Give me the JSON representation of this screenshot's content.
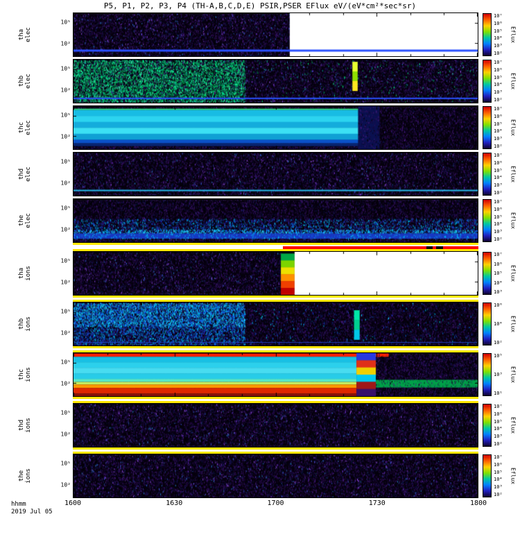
{
  "chart_data": {
    "type": "heatmap",
    "title": "P5, P1, P2, P3, P4 (TH-A,B,C,D,E) PSIR,PSER EFlux eV/(eV*cm²*sec*sr)",
    "colorbar_label": "Eflux",
    "colorbar_gradient": [
      "#d00000",
      "#ff6000",
      "#ffd000",
      "#80e000",
      "#00c8a0",
      "#0080ff",
      "#2020c0",
      "#100030"
    ],
    "x_axis": {
      "label": "hhmm",
      "date": "2019 Jul 05",
      "range_hhmm": [
        "1600",
        "1800"
      ],
      "ticks": [
        {
          "v": "1600",
          "f": 0
        },
        {
          "v": "1630",
          "f": 0.25
        },
        {
          "v": "1700",
          "f": 0.5
        },
        {
          "v": "1730",
          "f": 0.75
        },
        {
          "v": "1800",
          "f": 1
        }
      ]
    },
    "palettes": {
      "purple": [
        "#1c0838",
        "#2e0d55",
        "#3c1470",
        "#14073a",
        "#0d1a55",
        "#4a1c85",
        "#000000",
        "#24104a"
      ],
      "spark": [
        "#7a3ae0",
        "#3a60e0",
        "#9a55f0",
        "#2a80d0"
      ],
      "green": [
        "#00d060",
        "#00b050",
        "#00ff88",
        "#00a878",
        "#007840",
        "#00e8a0",
        "#003318"
      ],
      "blue": [
        "#1a3ae0",
        "#0a6ae8",
        "#00b4f0",
        "#2028a8",
        "#00e0ff",
        "#0848c0"
      ],
      "bluehi": [
        "#00c8ff",
        "#30e0ff",
        "#1060ff"
      ]
    },
    "panels": [
      {
        "id": "tha-elec",
        "sc": "tha",
        "sp": "elec",
        "yticks": [
          {
            "v": "10⁵",
            "f": 0.22
          },
          {
            "v": "10²",
            "f": 0.7
          }
        ],
        "cb": [
          "10⁷",
          "10⁶",
          "10⁵",
          "10⁴",
          "10³",
          "10²"
        ],
        "regions": [
          {
            "t": "n",
            "x1": 0.535,
            "d": 0.32,
            "p": "purple"
          },
          {
            "t": "n",
            "x1": 0.535,
            "d": 0.025,
            "p": "spark"
          },
          {
            "t": "s",
            "x0": 0.535,
            "c": "#ffffff"
          },
          {
            "t": "h",
            "y": 0.87,
            "th": 3,
            "c": "#2a50ff"
          }
        ]
      },
      {
        "id": "thb-elec",
        "sc": "thb",
        "sp": "elec",
        "yticks": [
          {
            "v": "10⁵",
            "f": 0.22
          },
          {
            "v": "10²",
            "f": 0.7
          }
        ],
        "cb": [
          "10⁷",
          "10⁶",
          "10⁵",
          "10⁴",
          "10³",
          "10²"
        ],
        "regions": [
          {
            "t": "n",
            "d": 0.32,
            "p": "purple"
          },
          {
            "t": "n",
            "d": 0.02,
            "p": "spark"
          },
          {
            "t": "n",
            "x1": 0.424,
            "d": 0.42,
            "p": "green"
          },
          {
            "t": "n",
            "x1": 0.424,
            "d": 0.1,
            "cs": [
              "#00ff99",
              "#40ffb0"
            ]
          },
          {
            "t": "n",
            "x0": 0.424,
            "d": 0.015,
            "p": "green"
          },
          {
            "t": "b",
            "x0": 0.69,
            "x1": 0.703,
            "y0": 0.05,
            "y1": 0.72,
            "cs": [
              "#e8ff30",
              "#90e000",
              "#ffe820"
            ]
          },
          {
            "t": "h",
            "y": 0.9,
            "th": 2,
            "c": "#2a50ff"
          }
        ]
      },
      {
        "id": "thc-elec",
        "sc": "thc",
        "sp": "elec",
        "yticks": [
          {
            "v": "10⁵",
            "f": 0.22
          },
          {
            "v": "10²",
            "f": 0.7
          }
        ],
        "cb": [
          "10⁷",
          "10⁶",
          "10⁵",
          "10⁴",
          "10³",
          "10²"
        ],
        "regions": [
          {
            "t": "n",
            "d": 0.32,
            "p": "purple"
          },
          {
            "t": "s",
            "x0": 0.704,
            "x1": 0.757,
            "c": "#0a1050"
          },
          {
            "t": "n",
            "x0": 0.704,
            "x1": 0.757,
            "d": 0.18,
            "p": "purple"
          },
          {
            "t": "h",
            "x1": 0.704,
            "y": 0.075,
            "th": 2,
            "c": "#38e888"
          },
          {
            "t": "b",
            "x1": 0.704,
            "y0": 0.09,
            "y1": 0.78,
            "cs": [
              "#18bce4",
              "#2cd4f0",
              "#14acdc",
              "#3ce0f4",
              "#10a0d4"
            ]
          },
          {
            "t": "s",
            "x1": 0.704,
            "y0": 0.78,
            "y1": 0.865,
            "c": "#0a50c8"
          },
          {
            "t": "s",
            "x1": 0.704,
            "y0": 0.865,
            "y1": 0.93,
            "c": "#082470"
          },
          {
            "t": "n",
            "x1": 0.704,
            "y0": 0.93,
            "d": 0.3,
            "p": "purple"
          }
        ]
      },
      {
        "id": "thd-elec",
        "sc": "thd",
        "sp": "elec",
        "yticks": [
          {
            "v": "10⁵",
            "f": 0.22
          },
          {
            "v": "10²",
            "f": 0.7
          }
        ],
        "cb": [
          "10⁷",
          "10⁶",
          "10⁵",
          "10⁴",
          "10³",
          "10²"
        ],
        "regions": [
          {
            "t": "n",
            "d": 0.32,
            "p": "purple"
          },
          {
            "t": "n",
            "d": 0.02,
            "p": "spark"
          },
          {
            "t": "h",
            "y": 0.88,
            "th": 2,
            "c": "#28b8e8"
          }
        ]
      },
      {
        "id": "the-elec",
        "sc": "the",
        "sp": "elec",
        "yticks": [
          {
            "v": "10⁵",
            "f": 0.22
          },
          {
            "v": "10²",
            "f": 0.7
          }
        ],
        "cb": [
          "10⁷",
          "10⁶",
          "10⁵",
          "10⁴",
          "10³",
          "10²"
        ],
        "regions": [
          {
            "t": "n",
            "d": 0.32,
            "p": "purple"
          },
          {
            "t": "n",
            "y0": 0.45,
            "y1": 0.85,
            "d": 0.22,
            "p": "blue"
          },
          {
            "t": "n",
            "y0": 0.7,
            "y1": 0.85,
            "d": 0.4,
            "p": "bluehi"
          },
          {
            "t": "s",
            "y0": 0.8,
            "y1": 0.92,
            "c": "#1838c0"
          },
          {
            "t": "n",
            "y0": 0.8,
            "y1": 0.92,
            "d": 0.25,
            "p": "blue"
          },
          {
            "t": "n",
            "y0": 0.92,
            "d": 0.3,
            "p": "purple"
          }
        ],
        "sep": [
          {
            "h": 3,
            "c": "#ffe800"
          },
          {
            "h": 2,
            "c": "#ffffff"
          },
          {
            "h": 4,
            "c": "#ff0000",
            "x0": 0.518,
            "blk": [
              [
                0.872,
                0.888
              ],
              [
                0.895,
                0.912
              ]
            ]
          },
          {
            "h": 3,
            "c": "#ffe800"
          }
        ]
      },
      {
        "id": "tha-ions",
        "sc": "tha",
        "sp": "ions",
        "yticks": [
          {
            "v": "10⁵",
            "f": 0.22
          },
          {
            "v": "10²",
            "f": 0.7
          }
        ],
        "cb": [
          "10⁷",
          "10⁶",
          "10⁵",
          "10⁴",
          "10³"
        ],
        "regions": [
          {
            "t": "n",
            "x1": 0.513,
            "d": 0.32,
            "p": "purple"
          },
          {
            "t": "n",
            "x1": 0.513,
            "d": 0.02,
            "p": "spark"
          },
          {
            "t": "b",
            "x0": 0.513,
            "x1": 0.547,
            "y0": 0.04,
            "cs": [
              "#00a846",
              "#7cd400",
              "#eee000",
              "#ff9000",
              "#f04000",
              "#c00000"
            ]
          },
          {
            "t": "s",
            "x0": 0.547,
            "c": "#ffffff"
          }
        ],
        "sep": [
          {
            "h": 3,
            "c": "#ffe800"
          },
          {
            "h": 3,
            "c": "#ffffff"
          },
          {
            "h": 3,
            "c": "#ffe800"
          }
        ]
      },
      {
        "id": "thb-ions",
        "sc": "thb",
        "sp": "ions",
        "yticks": [
          {
            "v": "10⁵",
            "f": 0.22
          },
          {
            "v": "10²",
            "f": 0.7
          }
        ],
        "cb": [
          "10⁶",
          "10⁴",
          "10²"
        ],
        "regions": [
          {
            "t": "n",
            "d": 0.32,
            "p": "purple"
          },
          {
            "t": "n",
            "x1": 0.424,
            "d": 0.4,
            "p": "blue"
          },
          {
            "t": "n",
            "x1": 0.424,
            "y1": 0.55,
            "d": 0.3,
            "p": "bluehi"
          },
          {
            "t": "n",
            "x0": 0.424,
            "d": 0.02,
            "p": "blue"
          },
          {
            "t": "b",
            "x0": 0.694,
            "x1": 0.708,
            "y0": 0.18,
            "y1": 0.86,
            "cs": [
              "#00e8a8",
              "#00d090",
              "#00c8e8"
            ]
          },
          {
            "t": "h",
            "y": 0.93,
            "th": 1,
            "c": "#2040c0"
          }
        ],
        "sep": [
          {
            "h": 3,
            "c": "#ffe800"
          },
          {
            "h": 3,
            "c": "#ffffff"
          },
          {
            "h": 3,
            "c": "#ffe800"
          }
        ]
      },
      {
        "id": "thc-ions",
        "sc": "thc",
        "sp": "ions",
        "yticks": [
          {
            "v": "10⁵",
            "f": 0.22
          },
          {
            "v": "10²",
            "f": 0.7
          }
        ],
        "cb": [
          "10⁵",
          "10³",
          "10¹"
        ],
        "regions": [
          {
            "t": "n",
            "d": 0.32,
            "p": "purple"
          },
          {
            "t": "s",
            "x1": 0.78,
            "y0": 0.01,
            "y1": 0.085,
            "c": "#ff2000"
          },
          {
            "t": "b",
            "x1": 0.7,
            "y0": 0.085,
            "y1": 0.6,
            "cs": [
              "#18c0e4",
              "#2cd0ec",
              "#48dcf0",
              "#28cce8"
            ]
          },
          {
            "t": "s",
            "x1": 0.7,
            "y0": 0.6,
            "y1": 0.67,
            "c": "#58e8c8"
          },
          {
            "t": "s",
            "x1": 0.7,
            "y0": 0.67,
            "y1": 0.73,
            "c": "#c8f060"
          },
          {
            "t": "s",
            "x1": 0.7,
            "y0": 0.73,
            "y1": 0.81,
            "c": "#ff9800"
          },
          {
            "t": "s",
            "x1": 0.7,
            "y0": 0.81,
            "y1": 0.94,
            "c": "#e02800"
          },
          {
            "t": "s",
            "x1": 0.7,
            "y0": 0.94,
            "c": "#8c1408"
          },
          {
            "t": "b",
            "x0": 0.7,
            "x1": 0.748,
            "cs": [
              "#2838e0",
              "#e03018",
              "#f0d000",
              "#00c8f0",
              "#a01818",
              "#38106a"
            ]
          },
          {
            "t": "s",
            "x0": 0.748,
            "y0": 0.62,
            "y1": 0.8,
            "c": "#00a048"
          },
          {
            "t": "n",
            "x0": 0.748,
            "d": 0.12,
            "p": "purple"
          }
        ],
        "sep": [
          {
            "h": 3,
            "c": "#ffe800"
          },
          {
            "h": 3,
            "c": "#ffffff"
          },
          {
            "h": 3,
            "c": "#ffe800"
          }
        ]
      },
      {
        "id": "thd-ions",
        "sc": "thd",
        "sp": "ions",
        "yticks": [
          {
            "v": "10⁵",
            "f": 0.22
          },
          {
            "v": "10²",
            "f": 0.7
          }
        ],
        "cb": [
          "10⁷",
          "10⁶",
          "10⁵",
          "10⁴",
          "10³",
          "10²"
        ],
        "regions": [
          {
            "t": "n",
            "d": 0.32,
            "p": "purple"
          },
          {
            "t": "n",
            "d": 0.02,
            "p": "spark"
          }
        ],
        "sep": [
          {
            "h": 3,
            "c": "#ffe800"
          },
          {
            "h": 3,
            "c": "#ffffff"
          },
          {
            "h": 3,
            "c": "#ffe800"
          }
        ]
      },
      {
        "id": "the-ions",
        "sc": "the",
        "sp": "ions",
        "yticks": [
          {
            "v": "10⁵",
            "f": 0.22
          },
          {
            "v": "10²",
            "f": 0.7
          }
        ],
        "cb": [
          "10⁷",
          "10⁶",
          "10⁵",
          "10⁴",
          "10³",
          "10²"
        ],
        "regions": [
          {
            "t": "n",
            "d": 0.32,
            "p": "purple"
          },
          {
            "t": "n",
            "d": 0.02,
            "p": "spark"
          }
        ]
      }
    ]
  }
}
